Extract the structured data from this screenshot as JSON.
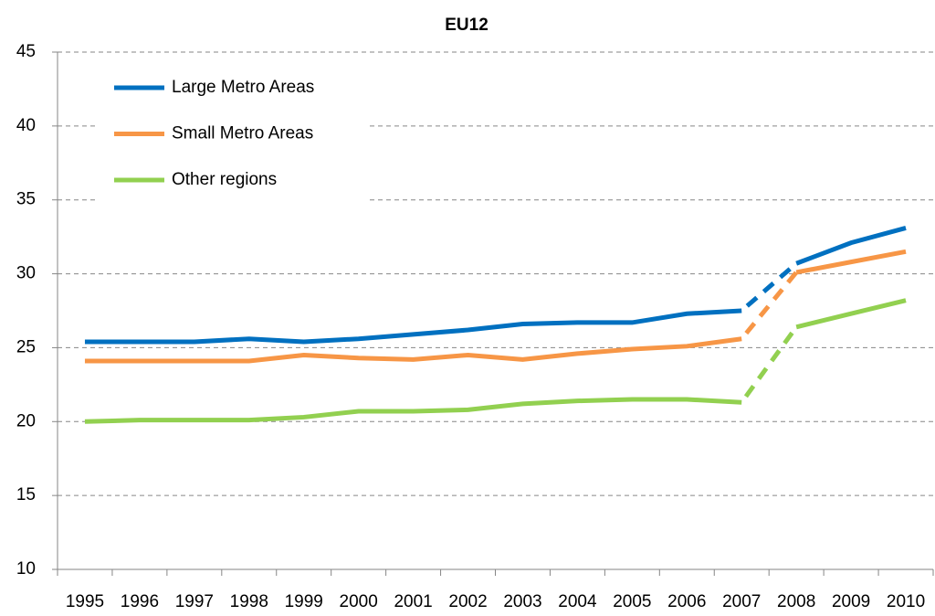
{
  "chart_data": {
    "type": "line",
    "title": "EU12",
    "categories": [
      "1995",
      "1996",
      "1997",
      "1998",
      "1999",
      "2000",
      "2001",
      "2002",
      "2003",
      "2004",
      "2005",
      "2006",
      "2007",
      "2008",
      "2009",
      "2010"
    ],
    "series": [
      {
        "name": "Large Metro Areas",
        "color": "#0070c0",
        "values": [
          25.4,
          25.4,
          25.4,
          25.6,
          25.4,
          25.6,
          25.9,
          26.2,
          26.6,
          26.7,
          26.7,
          27.3,
          27.5,
          30.7,
          32.1,
          33.1
        ]
      },
      {
        "name": "Small Metro Areas",
        "color": "#f79646",
        "values": [
          24.1,
          24.1,
          24.1,
          24.1,
          24.5,
          24.3,
          24.2,
          24.5,
          24.2,
          24.6,
          24.9,
          25.1,
          25.6,
          30.1,
          30.8,
          31.5
        ]
      },
      {
        "name": "Other regions",
        "color": "#92d050",
        "values": [
          20.0,
          20.1,
          20.1,
          20.1,
          20.3,
          20.7,
          20.7,
          20.8,
          21.2,
          21.4,
          21.5,
          21.5,
          21.3,
          26.4,
          27.3,
          28.2
        ]
      }
    ],
    "dashed_segments": [
      [
        12,
        13
      ]
    ],
    "ylim": [
      10,
      45
    ],
    "yticks": [
      10,
      15,
      20,
      25,
      30,
      35,
      40,
      45
    ],
    "grid": true,
    "legend": "upper left"
  }
}
